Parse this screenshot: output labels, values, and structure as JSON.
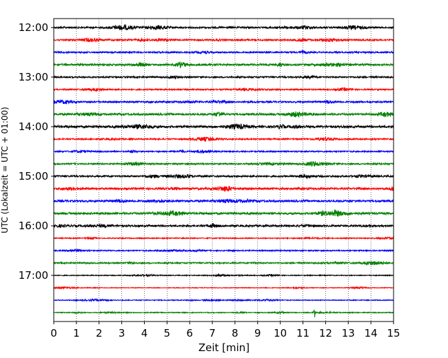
{
  "chart_data": {
    "type": "line",
    "title": "",
    "xlabel": "Zeit  [min]",
    "ylabel": "UTC (Lokalzeit = UTC + 01:00)",
    "xlim": [
      0,
      15
    ],
    "x_ticks": [
      "0",
      "1",
      "2",
      "3",
      "4",
      "5",
      "6",
      "7",
      "8",
      "9",
      "10",
      "11",
      "12",
      "13",
      "14",
      "15"
    ],
    "y_tick_labels": [
      "12:00",
      "13:00",
      "14:00",
      "15:00",
      "16:00",
      "17:00"
    ],
    "grid": "vertical-dotted",
    "trace_colors": [
      "#000000",
      "#ff0000",
      "#0000ff",
      "#008000"
    ],
    "traces": [
      {
        "start": "12:00",
        "color": "#000000",
        "amp": 1.0
      },
      {
        "start": "12:15",
        "color": "#ff0000",
        "amp": 0.9
      },
      {
        "start": "12:30",
        "color": "#0000ff",
        "amp": 0.9
      },
      {
        "start": "12:45",
        "color": "#008000",
        "amp": 1.1
      },
      {
        "start": "13:00",
        "color": "#000000",
        "amp": 0.9
      },
      {
        "start": "13:15",
        "color": "#ff0000",
        "amp": 0.8
      },
      {
        "start": "13:30",
        "color": "#0000ff",
        "amp": 1.0
      },
      {
        "start": "13:45",
        "color": "#008000",
        "amp": 1.2
      },
      {
        "start": "14:00",
        "color": "#000000",
        "amp": 1.3
      },
      {
        "start": "14:15",
        "color": "#ff0000",
        "amp": 0.8
      },
      {
        "start": "14:30",
        "color": "#0000ff",
        "amp": 0.8
      },
      {
        "start": "14:45",
        "color": "#008000",
        "amp": 0.9
      },
      {
        "start": "15:00",
        "color": "#000000",
        "amp": 1.0
      },
      {
        "start": "15:15",
        "color": "#ff0000",
        "amp": 1.2
      },
      {
        "start": "15:30",
        "color": "#0000ff",
        "amp": 1.2
      },
      {
        "start": "15:45",
        "color": "#008000",
        "amp": 1.2
      },
      {
        "start": "16:00",
        "color": "#000000",
        "amp": 1.1
      },
      {
        "start": "16:15",
        "color": "#ff0000",
        "amp": 0.6
      },
      {
        "start": "16:30",
        "color": "#0000ff",
        "amp": 0.7
      },
      {
        "start": "16:45",
        "color": "#008000",
        "amp": 0.8
      },
      {
        "start": "17:00",
        "color": "#000000",
        "amp": 0.5
      },
      {
        "start": "17:15",
        "color": "#ff0000",
        "amp": 0.4
      },
      {
        "start": "17:30",
        "color": "#0000ff",
        "amp": 0.5
      },
      {
        "start": "17:45",
        "color": "#008000",
        "amp": 0.5
      }
    ]
  }
}
